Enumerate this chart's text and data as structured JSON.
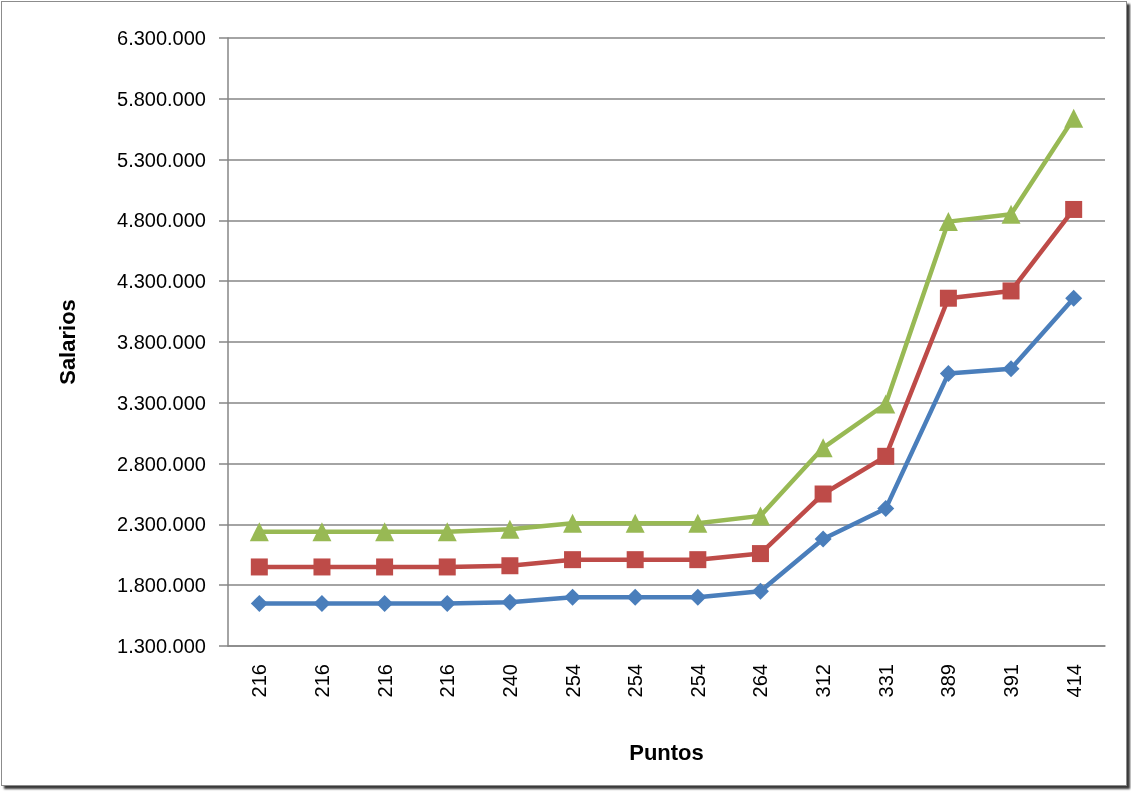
{
  "chart_data": {
    "type": "line",
    "xlabel": "Puntos",
    "ylabel": "Salarios",
    "categories": [
      "216",
      "216",
      "216",
      "216",
      "240",
      "254",
      "254",
      "254",
      "264",
      "312",
      "331",
      "389",
      "391",
      "414"
    ],
    "series": [
      {
        "color": "#4a7ebb",
        "marker": "diamond",
        "values": [
          1650000,
          1650000,
          1650000,
          1650000,
          1660000,
          1700000,
          1700000,
          1700000,
          1750000,
          2180000,
          2430000,
          3540000,
          3580000,
          4160000
        ]
      },
      {
        "color": "#be4b48",
        "marker": "square",
        "values": [
          1950000,
          1950000,
          1950000,
          1950000,
          1960000,
          2010000,
          2010000,
          2010000,
          2060000,
          2550000,
          2860000,
          4160000,
          4220000,
          4890000
        ]
      },
      {
        "color": "#98b954",
        "marker": "triangle",
        "values": [
          2240000,
          2240000,
          2240000,
          2240000,
          2260000,
          2310000,
          2310000,
          2310000,
          2370000,
          2930000,
          3290000,
          4790000,
          4850000,
          5640000
        ]
      }
    ],
    "ylim": [
      1300000,
      6300000
    ],
    "yticks": [
      {
        "value": 1300000,
        "label": "1.300.000"
      },
      {
        "value": 1800000,
        "label": "1.800.000"
      },
      {
        "value": 2300000,
        "label": "2.300.000"
      },
      {
        "value": 2800000,
        "label": "2.800.000"
      },
      {
        "value": 3300000,
        "label": "3.300.000"
      },
      {
        "value": 3800000,
        "label": "3.800.000"
      },
      {
        "value": 4300000,
        "label": "4.300.000"
      },
      {
        "value": 4800000,
        "label": "4.800.000"
      },
      {
        "value": 5300000,
        "label": "5.300.000"
      },
      {
        "value": 5800000,
        "label": "5.800.000"
      },
      {
        "value": 6300000,
        "label": "6.300.000"
      }
    ],
    "grid": "y",
    "line_style": "solid"
  }
}
